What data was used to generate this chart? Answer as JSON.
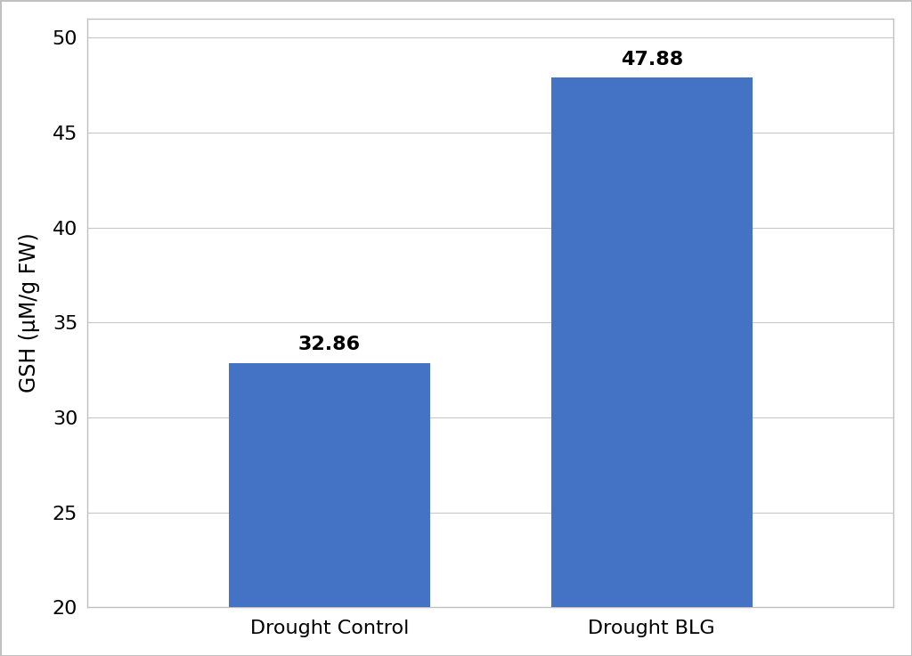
{
  "categories": [
    "Drought Control",
    "Drought BLG"
  ],
  "values": [
    32.86,
    47.88
  ],
  "bar_color": "#4472C4",
  "bar_labels": [
    "32.86",
    "47.88"
  ],
  "ylabel": "GSH (μM/g FW)",
  "ylim": [
    20,
    51
  ],
  "yticks": [
    20,
    25,
    30,
    35,
    40,
    45,
    50
  ],
  "bar_width": 0.25,
  "label_fontsize": 16,
  "tick_fontsize": 16,
  "ylabel_fontsize": 17,
  "annotation_fontsize": 16,
  "background_color": "#ffffff",
  "grid_color": "#c8c8c8",
  "border_color": "#c0c0c0"
}
